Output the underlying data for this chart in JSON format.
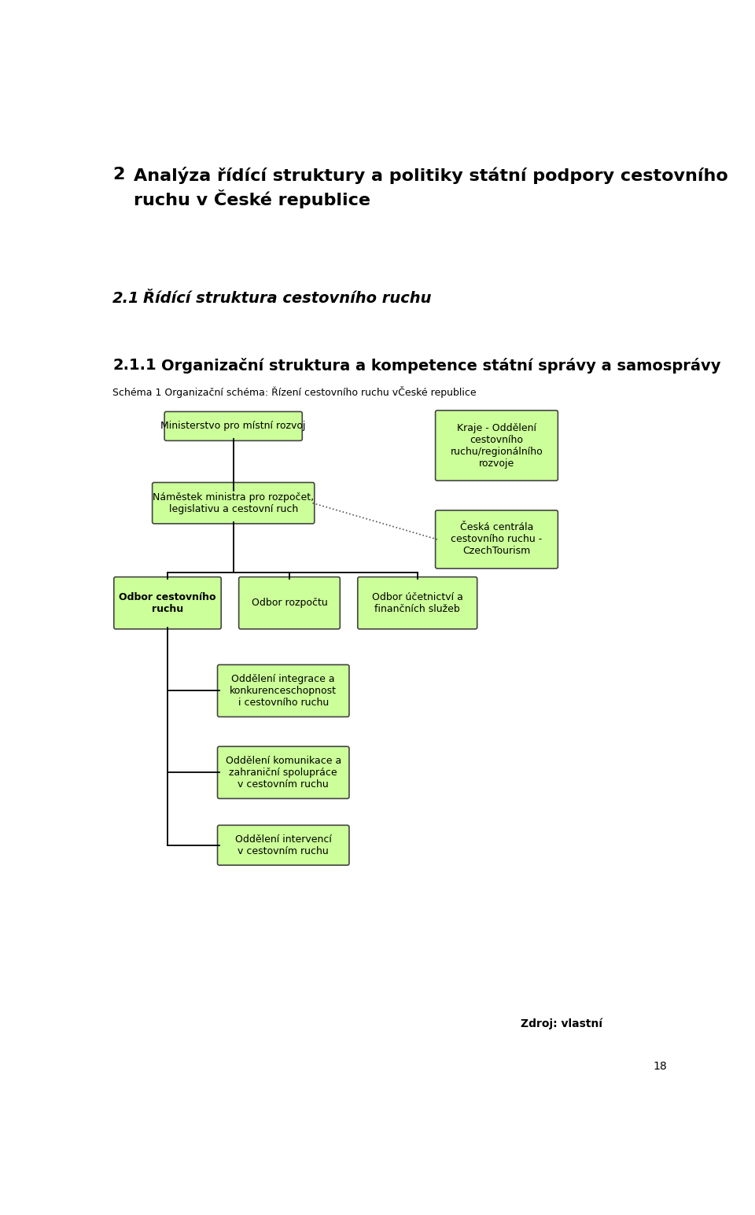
{
  "title_number": "2",
  "title_text": "  Analýza řídící struktury a politiky státní podpory cestovního\n    ruchu v České republice",
  "subtitle1_num": "2.1",
  "subtitle1_text": " Řídící struktura cestovního ruchu",
  "subtitle2_num": "2.1.1",
  "subtitle2_text": "  Organizační struktura a kompetence státní správy a samosprávy",
  "schema_label": "Schéma 1 Organizační schéma: Řízení cestovního ruchu vČeské republice",
  "source": "Zdroj: vlastní",
  "page_number": "18",
  "box_color": "#ccff99",
  "box_edge_color": "#444444",
  "nodes": {
    "ministerstvo": "Ministerstvo pro místní rozvoj",
    "kraje": "Kraje - Oddělení\ncestovního\nruchu/regionálního\nrozvoje",
    "namestek": "Náměstek ministra pro rozpočet,\nlegislativu a cestovní ruch",
    "ceska_centrala": "Česká centrála\ncestovního ruchu -\nCzechTourism",
    "odbor_cr": "Odbor cestovního\nruchu",
    "odbor_rozpoctu": "Odbor rozpočtu",
    "odbor_ucetnictvi": "Odbor účetnictví a\nfinančních služeb",
    "oddeleni_integrace": "Oddělení integrace a\nkonkurenceschopnost\ni cestovního ruchu",
    "oddeleni_komunikace": "Oddělení komunikace a\nzahraniční spolupráce\nv cestovním ruchu",
    "oddeleni_intervenci": "Oddělení intervencí\nv cestovním ruchu"
  }
}
